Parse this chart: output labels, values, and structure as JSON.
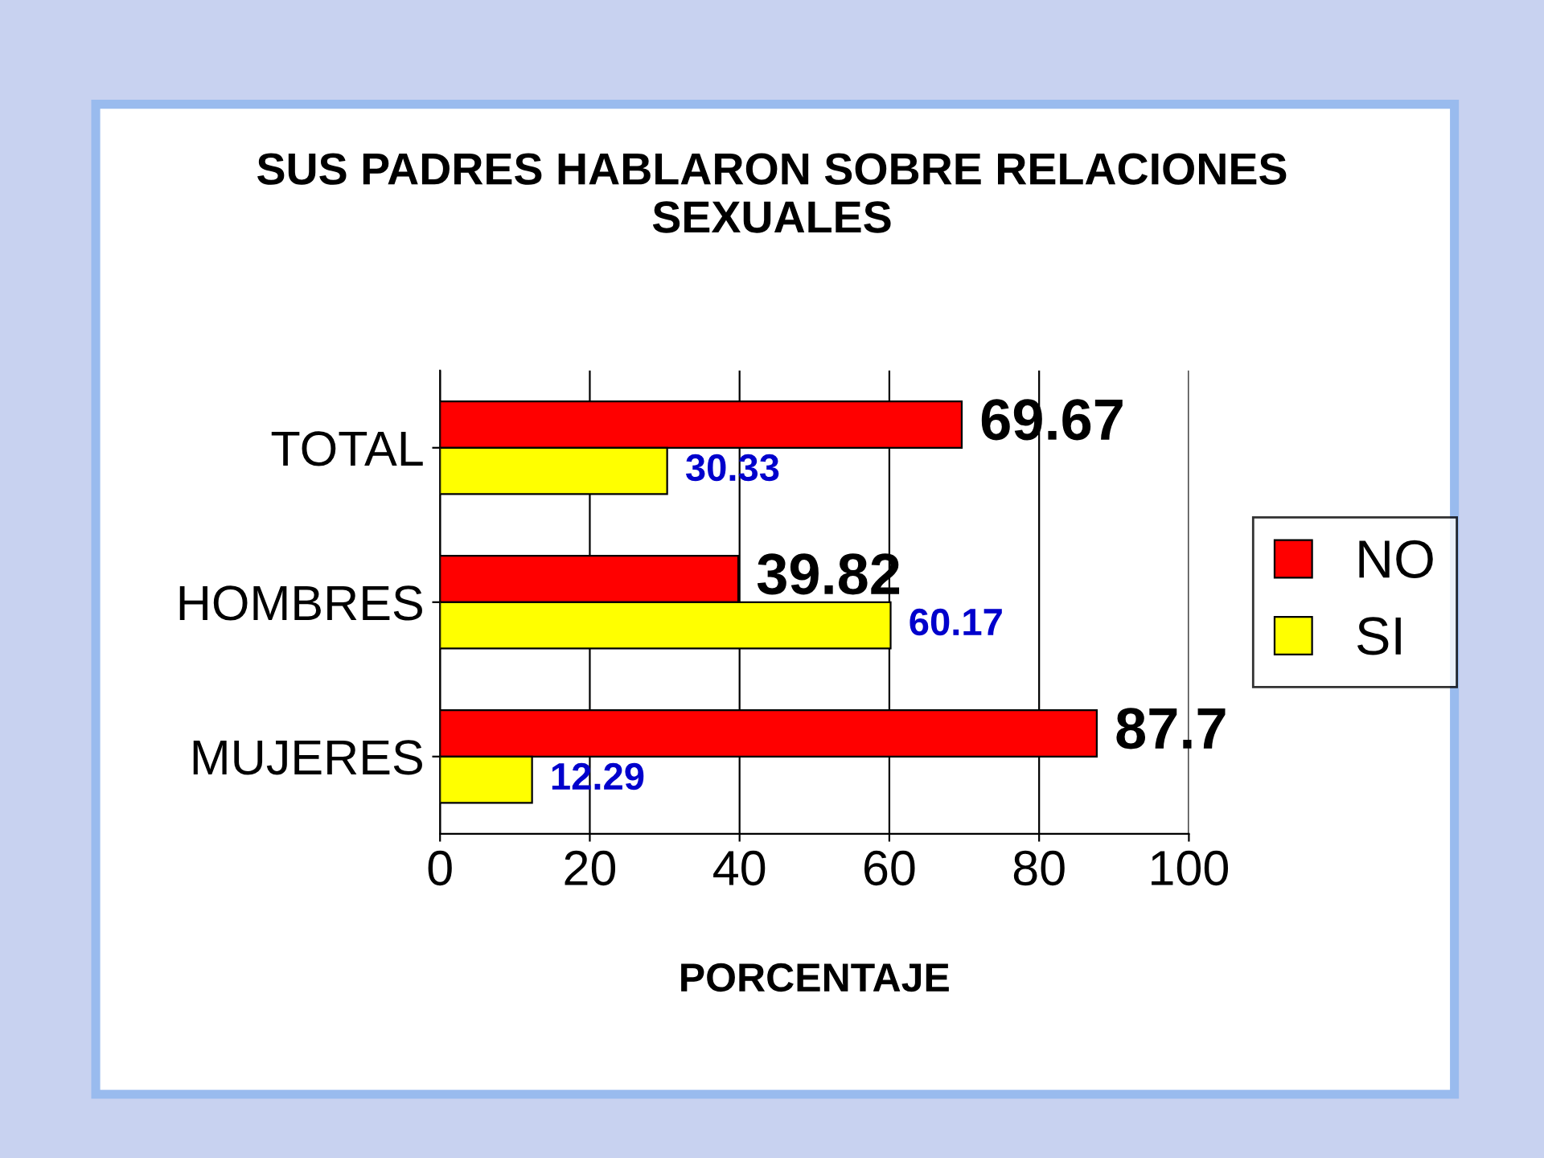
{
  "chart_data": {
    "type": "bar",
    "orientation": "horizontal",
    "title": "SUS PADRES HABLARON SOBRE RELACIONES\nSEXUALES",
    "xlabel": "PORCENTAJE",
    "categories": [
      "TOTAL",
      "HOMBRES",
      "MUJERES"
    ],
    "series": [
      {
        "name": "NO",
        "color": "#ff0000",
        "values": [
          69.67,
          39.82,
          87.7
        ]
      },
      {
        "name": "SI",
        "color": "#ffff00",
        "values": [
          30.33,
          60.17,
          12.29
        ]
      }
    ],
    "xlim": [
      0,
      100
    ],
    "xticks": [
      0,
      20,
      40,
      60,
      80,
      100
    ],
    "grid": "x",
    "legend": "right",
    "data_labels": true
  }
}
